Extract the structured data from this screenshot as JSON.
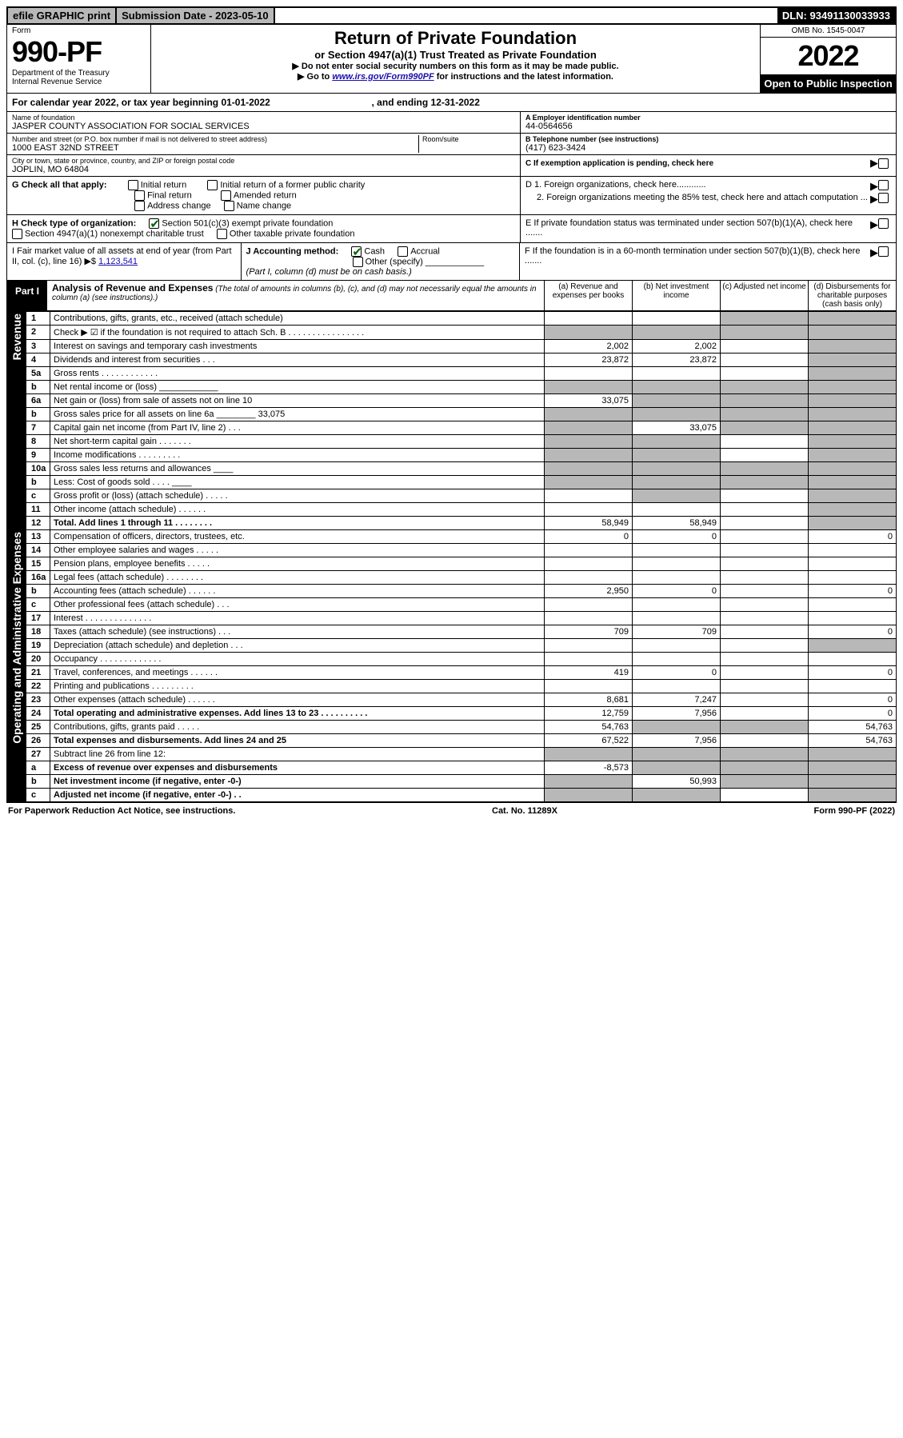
{
  "topbar": {
    "efile": "efile GRAPHIC print",
    "subdate": "Submission Date - 2023-05-10",
    "dln": "DLN: 93491130033933"
  },
  "header": {
    "form_label": "Form",
    "form_num": "990-PF",
    "dept": "Department of the Treasury",
    "irs": "Internal Revenue Service",
    "title": "Return of Private Foundation",
    "subtitle": "or Section 4947(a)(1) Trust Treated as Private Foundation",
    "note1": "▶ Do not enter social security numbers on this form as it may be made public.",
    "note2_prefix": "▶ Go to ",
    "note2_link": "www.irs.gov/Form990PF",
    "note2_suffix": " for instructions and the latest information.",
    "omb": "OMB No. 1545-0047",
    "year": "2022",
    "open": "Open to Public Inspection"
  },
  "calrow": {
    "text_a": "For calendar year 2022, or tax year beginning 01-01-2022",
    "text_b": ", and ending 12-31-2022"
  },
  "id": {
    "name_lbl": "Name of foundation",
    "name_val": "JASPER COUNTY ASSOCIATION FOR SOCIAL SERVICES",
    "addr_lbl": "Number and street (or P.O. box number if mail is not delivered to street address)",
    "addr_val": "1000 EAST 32ND STREET",
    "room_lbl": "Room/suite",
    "city_lbl": "City or town, state or province, country, and ZIP or foreign postal code",
    "city_val": "JOPLIN, MO  64804",
    "a_lbl": "A Employer identification number",
    "a_val": "44-0564656",
    "b_lbl": "B Telephone number (see instructions)",
    "b_val": "(417) 623-3424",
    "c_lbl": "C If exemption application is pending, check here"
  },
  "g": {
    "label": "G Check all that apply:",
    "opt1": "Initial return",
    "opt2": "Final return",
    "opt3": "Address change",
    "opt4": "Initial return of a former public charity",
    "opt5": "Amended return",
    "opt6": "Name change"
  },
  "d": {
    "d1": "D 1. Foreign organizations, check here............",
    "d2": "2. Foreign organizations meeting the 85% test, check here and attach computation ..."
  },
  "h": {
    "label": "H Check type of organization:",
    "opt1": "Section 501(c)(3) exempt private foundation",
    "opt2": "Section 4947(a)(1) nonexempt charitable trust",
    "opt3": "Other taxable private foundation"
  },
  "e": {
    "text": "E If private foundation status was terminated under section 507(b)(1)(A), check here ......."
  },
  "i": {
    "label": "I Fair market value of all assets at end of year (from Part II, col. (c), line 16) ▶$ ",
    "val": "1,123,541"
  },
  "j": {
    "label": "J Accounting method:",
    "cash": "Cash",
    "accrual": "Accrual",
    "other": "Other (specify)",
    "note": "(Part I, column (d) must be on cash basis.)"
  },
  "f": {
    "text": "F If the foundation is in a 60-month termination under section 507(b)(1)(B), check here ......."
  },
  "part1": {
    "label": "Part I",
    "title": "Analysis of Revenue and Expenses",
    "desc": "(The total of amounts in columns (b), (c), and (d) may not necessarily equal the amounts in column (a) (see instructions).)",
    "col_a": "(a)  Revenue and expenses per books",
    "col_b": "(b)  Net investment income",
    "col_c": "(c)  Adjusted net income",
    "col_d": "(d)  Disbursements for charitable purposes (cash basis only)"
  },
  "side_labels": {
    "revenue": "Revenue",
    "expenses": "Operating and Administrative Expenses"
  },
  "rows": [
    {
      "num": "1",
      "desc": "Contributions, gifts, grants, etc., received (attach schedule)",
      "a": "",
      "b": "",
      "c": "shade",
      "d": "shade"
    },
    {
      "num": "2",
      "desc": "Check ▶ ☑ if the foundation is not required to attach Sch. B  .  .  .  .  .  .  .  .  .  .  .  .  .  .  .  .",
      "a": "shade",
      "b": "shade",
      "c": "shade",
      "d": "shade"
    },
    {
      "num": "3",
      "desc": "Interest on savings and temporary cash investments",
      "a": "2,002",
      "b": "2,002",
      "c": "",
      "d": "shade"
    },
    {
      "num": "4",
      "desc": "Dividends and interest from securities  .  .  .",
      "a": "23,872",
      "b": "23,872",
      "c": "",
      "d": "shade"
    },
    {
      "num": "5a",
      "desc": "Gross rents  .  .  .  .  .  .  .  .  .  .  .  .",
      "a": "",
      "b": "",
      "c": "",
      "d": "shade"
    },
    {
      "num": "b",
      "desc": "Net rental income or (loss)  ____________",
      "a": "shade",
      "b": "shade",
      "c": "shade",
      "d": "shade"
    },
    {
      "num": "6a",
      "desc": "Net gain or (loss) from sale of assets not on line 10",
      "a": "33,075",
      "b": "shade",
      "c": "shade",
      "d": "shade"
    },
    {
      "num": "b",
      "desc": "Gross sales price for all assets on line 6a ________ 33,075",
      "a": "shade",
      "b": "shade",
      "c": "shade",
      "d": "shade"
    },
    {
      "num": "7",
      "desc": "Capital gain net income (from Part IV, line 2)  .  .  .",
      "a": "shade",
      "b": "33,075",
      "c": "shade",
      "d": "shade"
    },
    {
      "num": "8",
      "desc": "Net short-term capital gain  .  .  .  .  .  .  .",
      "a": "shade",
      "b": "shade",
      "c": "",
      "d": "shade"
    },
    {
      "num": "9",
      "desc": "Income modifications  .  .  .  .  .  .  .  .  .",
      "a": "shade",
      "b": "shade",
      "c": "",
      "d": "shade"
    },
    {
      "num": "10a",
      "desc": "Gross sales less returns and allowances  ____",
      "a": "shade",
      "b": "shade",
      "c": "shade",
      "d": "shade"
    },
    {
      "num": "b",
      "desc": "Less: Cost of goods sold  .  .  .  .  ____",
      "a": "shade",
      "b": "shade",
      "c": "shade",
      "d": "shade"
    },
    {
      "num": "c",
      "desc": "Gross profit or (loss) (attach schedule)  .  .  .  .  .",
      "a": "",
      "b": "shade",
      "c": "",
      "d": "shade"
    },
    {
      "num": "11",
      "desc": "Other income (attach schedule)  .  .  .  .  .  .",
      "a": "",
      "b": "",
      "c": "",
      "d": "shade"
    },
    {
      "num": "12",
      "desc": "Total. Add lines 1 through 11  .  .  .  .  .  .  .  .",
      "a": "58,949",
      "b": "58,949",
      "c": "",
      "d": "shade",
      "bold": true
    },
    {
      "num": "13",
      "desc": "Compensation of officers, directors, trustees, etc.",
      "a": "0",
      "b": "0",
      "c": "",
      "d": "0"
    },
    {
      "num": "14",
      "desc": "Other employee salaries and wages  .  .  .  .  .",
      "a": "",
      "b": "",
      "c": "",
      "d": ""
    },
    {
      "num": "15",
      "desc": "Pension plans, employee benefits  .  .  .  .  .",
      "a": "",
      "b": "",
      "c": "",
      "d": ""
    },
    {
      "num": "16a",
      "desc": "Legal fees (attach schedule)  .  .  .  .  .  .  .  .",
      "a": "",
      "b": "",
      "c": "",
      "d": ""
    },
    {
      "num": "b",
      "desc": "Accounting fees (attach schedule)  .  .  .  .  .  .",
      "a": "2,950",
      "b": "0",
      "c": "",
      "d": "0"
    },
    {
      "num": "c",
      "desc": "Other professional fees (attach schedule)  .  .  .",
      "a": "",
      "b": "",
      "c": "",
      "d": ""
    },
    {
      "num": "17",
      "desc": "Interest  .  .  .  .  .  .  .  .  .  .  .  .  .  .",
      "a": "",
      "b": "",
      "c": "",
      "d": ""
    },
    {
      "num": "18",
      "desc": "Taxes (attach schedule) (see instructions)  .  .  .",
      "a": "709",
      "b": "709",
      "c": "",
      "d": "0"
    },
    {
      "num": "19",
      "desc": "Depreciation (attach schedule) and depletion  .  .  .",
      "a": "",
      "b": "",
      "c": "",
      "d": "shade"
    },
    {
      "num": "20",
      "desc": "Occupancy  .  .  .  .  .  .  .  .  .  .  .  .  .",
      "a": "",
      "b": "",
      "c": "",
      "d": ""
    },
    {
      "num": "21",
      "desc": "Travel, conferences, and meetings  .  .  .  .  .  .",
      "a": "419",
      "b": "0",
      "c": "",
      "d": "0"
    },
    {
      "num": "22",
      "desc": "Printing and publications  .  .  .  .  .  .  .  .  .",
      "a": "",
      "b": "",
      "c": "",
      "d": ""
    },
    {
      "num": "23",
      "desc": "Other expenses (attach schedule)  .  .  .  .  .  .",
      "a": "8,681",
      "b": "7,247",
      "c": "",
      "d": "0"
    },
    {
      "num": "24",
      "desc": "Total operating and administrative expenses. Add lines 13 to 23  .  .  .  .  .  .  .  .  .  .",
      "a": "12,759",
      "b": "7,956",
      "c": "",
      "d": "0",
      "bold": true
    },
    {
      "num": "25",
      "desc": "Contributions, gifts, grants paid  .  .  .  .  .",
      "a": "54,763",
      "b": "shade",
      "c": "shade",
      "d": "54,763"
    },
    {
      "num": "26",
      "desc": "Total expenses and disbursements. Add lines 24 and 25",
      "a": "67,522",
      "b": "7,956",
      "c": "",
      "d": "54,763",
      "bold": true
    },
    {
      "num": "27",
      "desc": "Subtract line 26 from line 12:",
      "a": "shade",
      "b": "shade",
      "c": "shade",
      "d": "shade"
    },
    {
      "num": "a",
      "desc": "Excess of revenue over expenses and disbursements",
      "a": "-8,573",
      "b": "shade",
      "c": "shade",
      "d": "shade",
      "bold": true
    },
    {
      "num": "b",
      "desc": "Net investment income (if negative, enter -0-)",
      "a": "shade",
      "b": "50,993",
      "c": "shade",
      "d": "shade",
      "bold": true
    },
    {
      "num": "c",
      "desc": "Adjusted net income (if negative, enter -0-)  .  .",
      "a": "shade",
      "b": "shade",
      "c": "",
      "d": "shade",
      "bold": true
    }
  ],
  "footer": {
    "left": "For Paperwork Reduction Act Notice, see instructions.",
    "mid": "Cat. No. 11289X",
    "right": "Form 990-PF (2022)"
  }
}
